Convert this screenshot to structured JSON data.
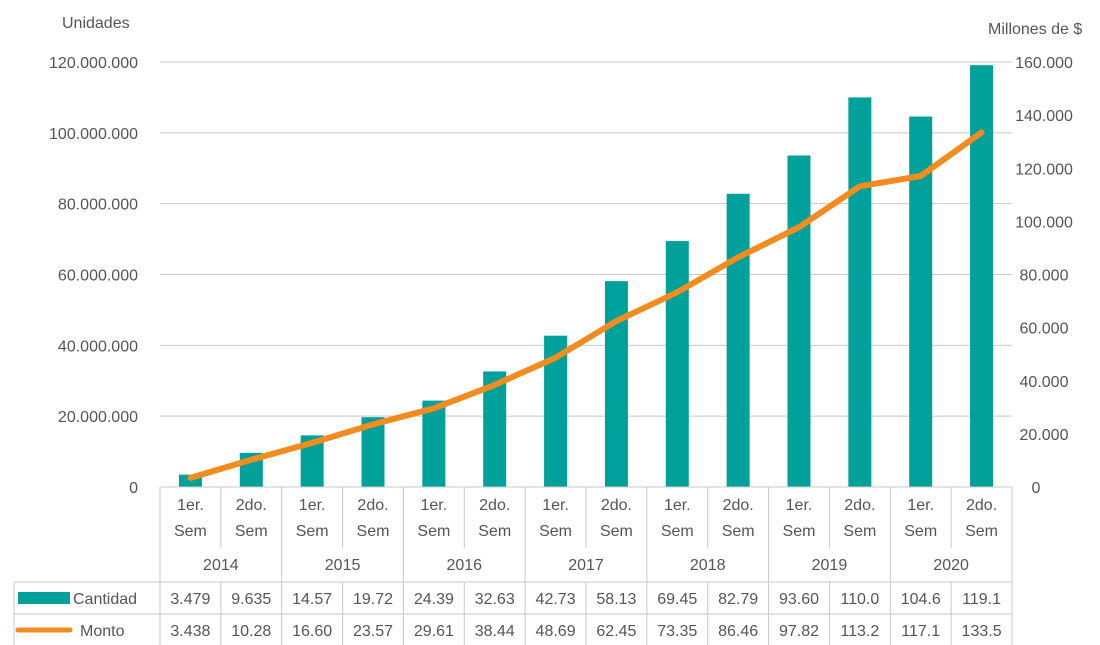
{
  "chart_data": {
    "type": "bar",
    "title": "",
    "left_axis": {
      "label": "Unidades",
      "ylim": [
        0,
        120000000
      ],
      "ticks": [
        "0",
        "20.000.000",
        "40.000.000",
        "60.000.000",
        "80.000.000",
        "100.000.000",
        "120.000.000"
      ]
    },
    "right_axis": {
      "label": "Millones de $",
      "ylim": [
        0,
        160000
      ],
      "ticks": [
        "0",
        "20.000",
        "40.000",
        "60.000",
        "80.000",
        "100.000",
        "120.000",
        "140.000",
        "160.000"
      ]
    },
    "semesters": [
      "1er. Sem",
      "2do. Sem"
    ],
    "years": [
      "2014",
      "2015",
      "2016",
      "2017",
      "2018",
      "2019",
      "2020"
    ],
    "categories": [
      "2014 1er. Sem",
      "2014 2do. Sem",
      "2015 1er. Sem",
      "2015 2do. Sem",
      "2016 1er. Sem",
      "2016 2do. Sem",
      "2017 1er. Sem",
      "2017 2do. Sem",
      "2018 1er. Sem",
      "2018 2do. Sem",
      "2019 1er. Sem",
      "2019 2do. Sem",
      "2020 1er. Sem",
      "2020 2do. Sem"
    ],
    "series": [
      {
        "name": "Cantidad",
        "type": "bar",
        "axis": "left",
        "color": "#00A19A",
        "values": [
          3479000,
          9635000,
          14570000,
          19720000,
          24390000,
          32630000,
          42730000,
          58130000,
          69450000,
          82790000,
          93600000,
          110000000,
          104600000,
          119100000
        ],
        "table_labels": [
          "3.479",
          "9.635",
          "14.57",
          "19.72",
          "24.39",
          "32.63",
          "42.73",
          "58.13",
          "69.45",
          "82.79",
          "93.60",
          "110.0",
          "104.6",
          "119.1"
        ]
      },
      {
        "name": "Monto",
        "type": "line",
        "axis": "right",
        "color": "#F28C1E",
        "values": [
          3438,
          10280,
          16600,
          23570,
          29610,
          38440,
          48690,
          62450,
          73350,
          86460,
          97820,
          113200,
          117100,
          133500
        ],
        "table_labels": [
          "3.438",
          "10.28",
          "16.60",
          "23.57",
          "29.61",
          "38.44",
          "48.69",
          "62.45",
          "73.35",
          "86.46",
          "97.82",
          "113.2",
          "117.1",
          "133.5"
        ]
      }
    ],
    "grid": true,
    "legend": "data-table"
  }
}
